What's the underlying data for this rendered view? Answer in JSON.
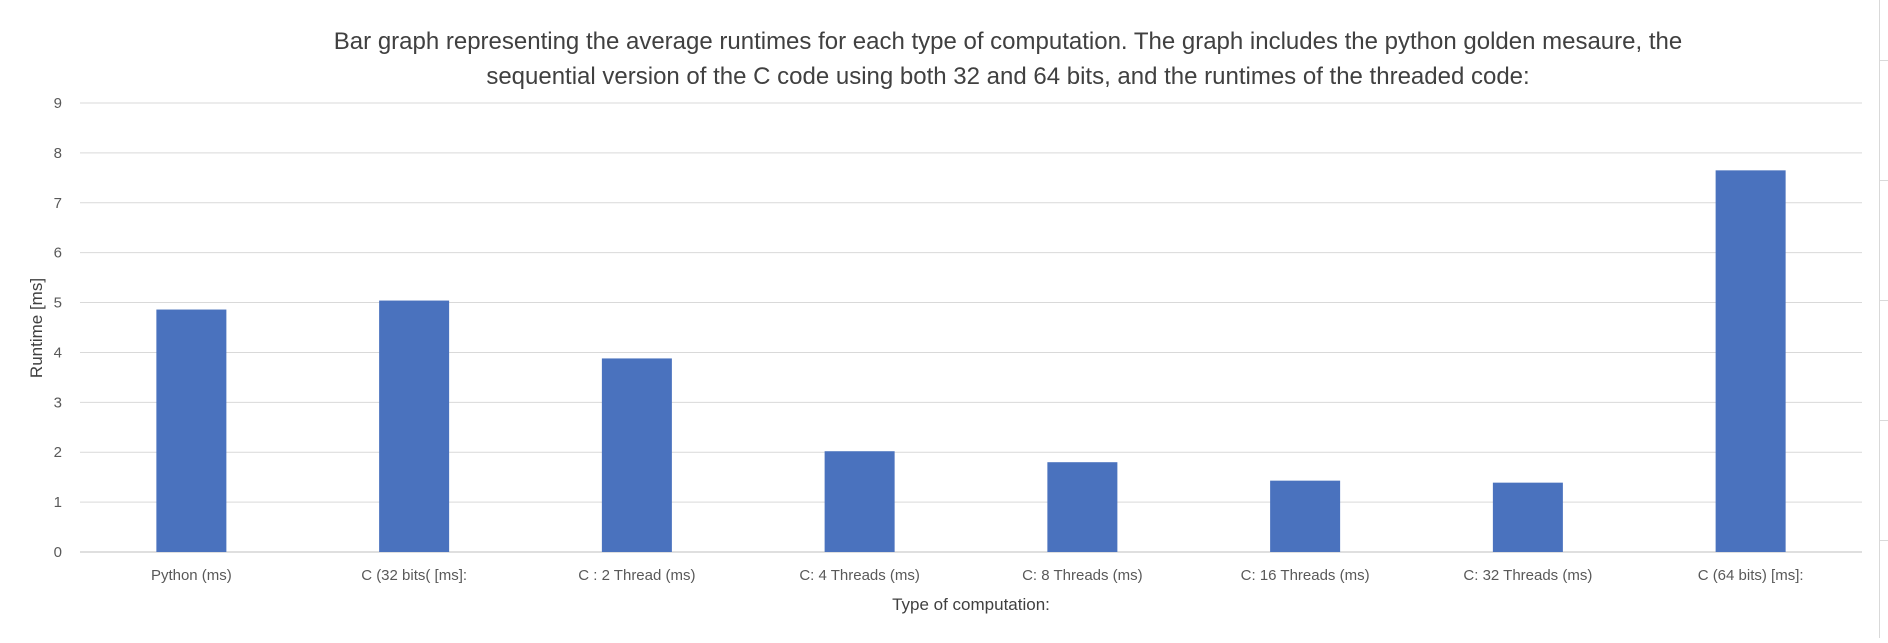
{
  "chart_data": {
    "type": "bar",
    "title": "Bar graph representing the average runtimes for each type of computation. The graph includes the python golden mesaure, the sequential version of the C code using both 32 and 64 bits, and the runtimes of the threaded code:",
    "title_lines": [
      "Bar graph representing the average runtimes for each type of computation. The graph includes the python golden mesaure, the",
      "sequential version of the C code using both 32 and 64 bits, and the runtimes of the threaded code:"
    ],
    "xlabel": "Type of computation:",
    "ylabel": "Runtime [ms]",
    "categories": [
      "Python (ms)",
      "C (32 bits( [ms]:",
      "C : 2 Thread (ms)",
      "C: 4 Threads (ms)",
      "C: 8 Threads (ms)",
      "C: 16 Threads (ms)",
      "C: 32 Threads (ms)",
      "C (64 bits) [ms]:"
    ],
    "values": [
      4.86,
      5.04,
      3.88,
      2.02,
      1.8,
      1.43,
      1.39,
      7.65
    ],
    "ylim": [
      0,
      9
    ],
    "yticks": [
      0,
      1,
      2,
      3,
      4,
      5,
      6,
      7,
      8,
      9
    ],
    "grid": true,
    "legend": "none",
    "bar_color": "#4a72be",
    "gridline_color": "#d9d9d9"
  }
}
